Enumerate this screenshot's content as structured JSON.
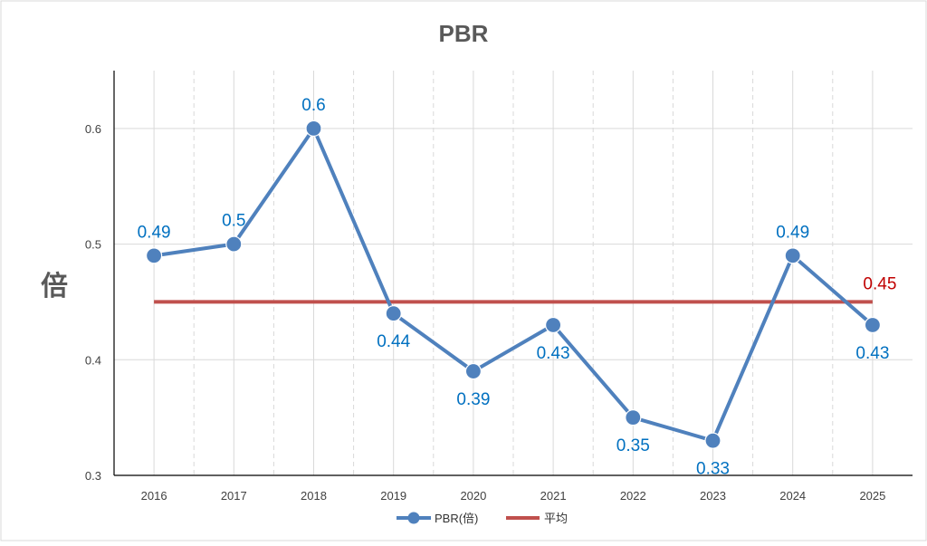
{
  "chart_data": {
    "type": "line",
    "title": "PBR",
    "ylabel": "倍",
    "xlabel": "",
    "categories": [
      "2016",
      "2017",
      "2018",
      "2019",
      "2020",
      "2021",
      "2022",
      "2023",
      "2024",
      "2025"
    ],
    "ylim": [
      0.3,
      0.65
    ],
    "yticks": [
      0.3,
      0.4,
      0.5,
      0.6
    ],
    "ytick_labels": [
      "0.3",
      "0.4",
      "0.5",
      "0.6"
    ],
    "grid": true,
    "legend_position": "bottom",
    "series": [
      {
        "name": "PBR(倍)",
        "values": [
          0.49,
          0.5,
          0.6,
          0.44,
          0.39,
          0.43,
          0.35,
          0.33,
          0.49,
          0.43
        ],
        "labels": [
          "0.49",
          "0.5",
          "0.6",
          "0.44",
          "0.39",
          "0.43",
          "0.35",
          "0.33",
          "0.49",
          "0.43"
        ],
        "label_side": [
          "above",
          "above",
          "above",
          "below",
          "below",
          "below",
          "below",
          "below",
          "above",
          "below"
        ],
        "color": "#4f81bd",
        "label_color": "#0070c0",
        "marker": "circle"
      },
      {
        "name": "平均",
        "value": 0.45,
        "label": "0.45",
        "color": "#c0504d",
        "label_color": "#c00000"
      }
    ]
  }
}
